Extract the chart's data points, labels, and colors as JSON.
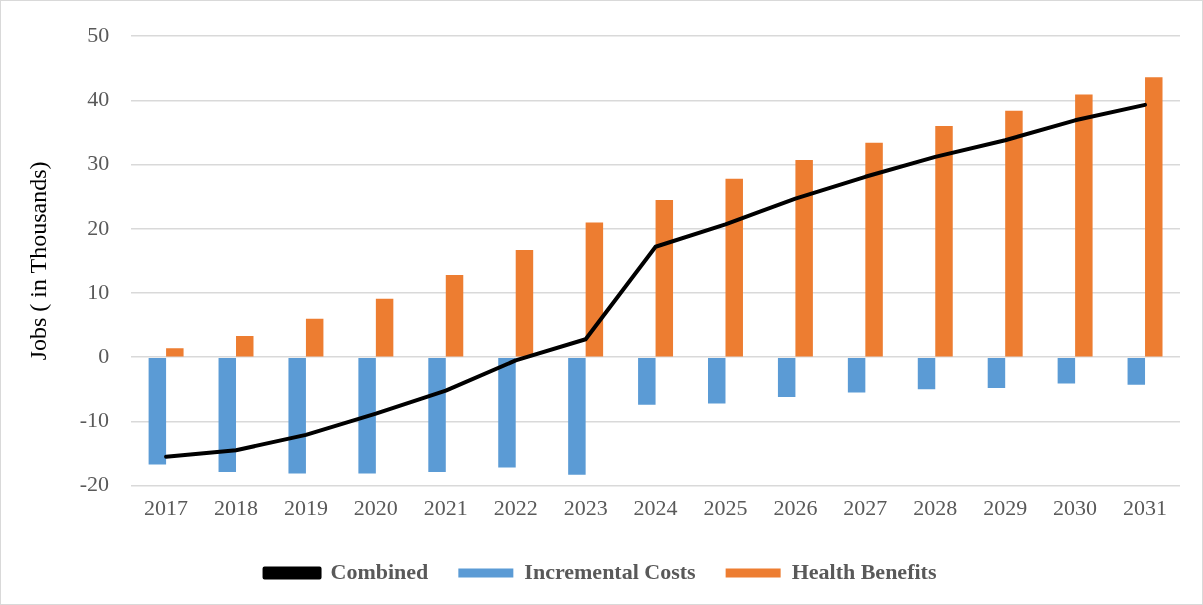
{
  "chart_data": {
    "type": "bar",
    "ylabel": "Jobs ( in Thousands)",
    "categories": [
      "2017",
      "2018",
      "2019",
      "2020",
      "2021",
      "2022",
      "2023",
      "2024",
      "2025",
      "2026",
      "2027",
      "2028",
      "2029",
      "2030",
      "2031"
    ],
    "series": [
      {
        "name": "Incremental Costs",
        "color": "#5b9bd5",
        "values": [
          -16.7,
          -17.9,
          -18.1,
          -18.1,
          -17.9,
          -17.2,
          -18.3,
          -7.4,
          -7.2,
          -6.2,
          -5.5,
          -5.0,
          -4.8,
          -4.1,
          -4.3
        ]
      },
      {
        "name": "Health Benefits",
        "color": "#ed7d31",
        "values": [
          1.4,
          3.3,
          6.0,
          9.1,
          12.8,
          16.7,
          21.0,
          24.5,
          27.8,
          30.7,
          33.4,
          36.0,
          38.4,
          40.9,
          43.6
        ]
      },
      {
        "name": "Combined",
        "type": "line",
        "color": "#000000",
        "marker": "none",
        "values": [
          -15.5,
          -14.5,
          -12.1,
          -8.8,
          -5.2,
          -0.5,
          2.8,
          17.2,
          20.7,
          24.7,
          28.1,
          31.2,
          33.8,
          36.9,
          39.3
        ]
      }
    ],
    "ylim": [
      -20,
      50
    ],
    "yticks": [
      -20,
      -10,
      0,
      10,
      20,
      30,
      40,
      50
    ],
    "grid": "y",
    "legend": "bottom"
  }
}
